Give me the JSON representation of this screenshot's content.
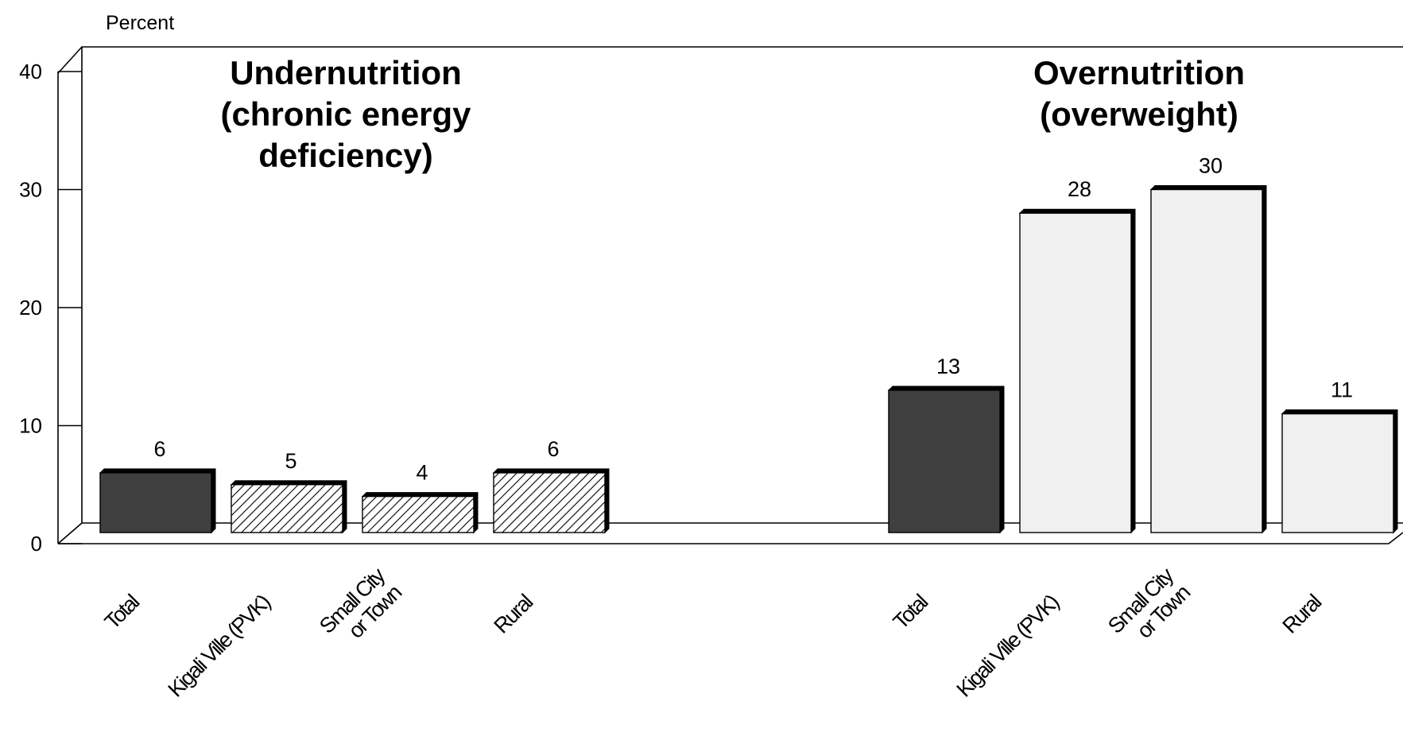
{
  "chart_data": {
    "type": "bar",
    "title": "",
    "ylabel": "Percent",
    "xlabel": "",
    "ylim": [
      0,
      40
    ],
    "yticks": [
      "0",
      "10",
      "20",
      "30",
      "40"
    ],
    "grid": false,
    "legend": "none",
    "colors": {
      "total": "#3f3f3f",
      "hatched": "#ffffff",
      "light": "#f0f0f0",
      "outline": "#000000"
    },
    "groups": [
      {
        "title_lines": [
          "Undernutrition",
          "(chronic energy",
          "deficiency)"
        ],
        "bars": [
          {
            "category_lines": [
              "Total"
            ],
            "value": 6,
            "label": "6",
            "style": "total"
          },
          {
            "category_lines": [
              "Kigali Ville (PVK)"
            ],
            "value": 5,
            "label": "5",
            "style": "hatched"
          },
          {
            "category_lines": [
              "Small City",
              "or Town"
            ],
            "value": 4,
            "label": "4",
            "style": "hatched"
          },
          {
            "category_lines": [
              "Rural"
            ],
            "value": 6,
            "label": "6",
            "style": "hatched"
          }
        ]
      },
      {
        "title_lines": [
          "Overnutrition",
          "(overweight)"
        ],
        "bars": [
          {
            "category_lines": [
              "Total"
            ],
            "value": 13,
            "label": "13",
            "style": "total"
          },
          {
            "category_lines": [
              "Kigali Ville (PVK)"
            ],
            "value": 28,
            "label": "28",
            "style": "light"
          },
          {
            "category_lines": [
              "Small City",
              "or Town"
            ],
            "value": 30,
            "label": "30",
            "style": "light"
          },
          {
            "category_lines": [
              "Rural"
            ],
            "value": 11,
            "label": "11",
            "style": "light"
          }
        ]
      }
    ]
  }
}
